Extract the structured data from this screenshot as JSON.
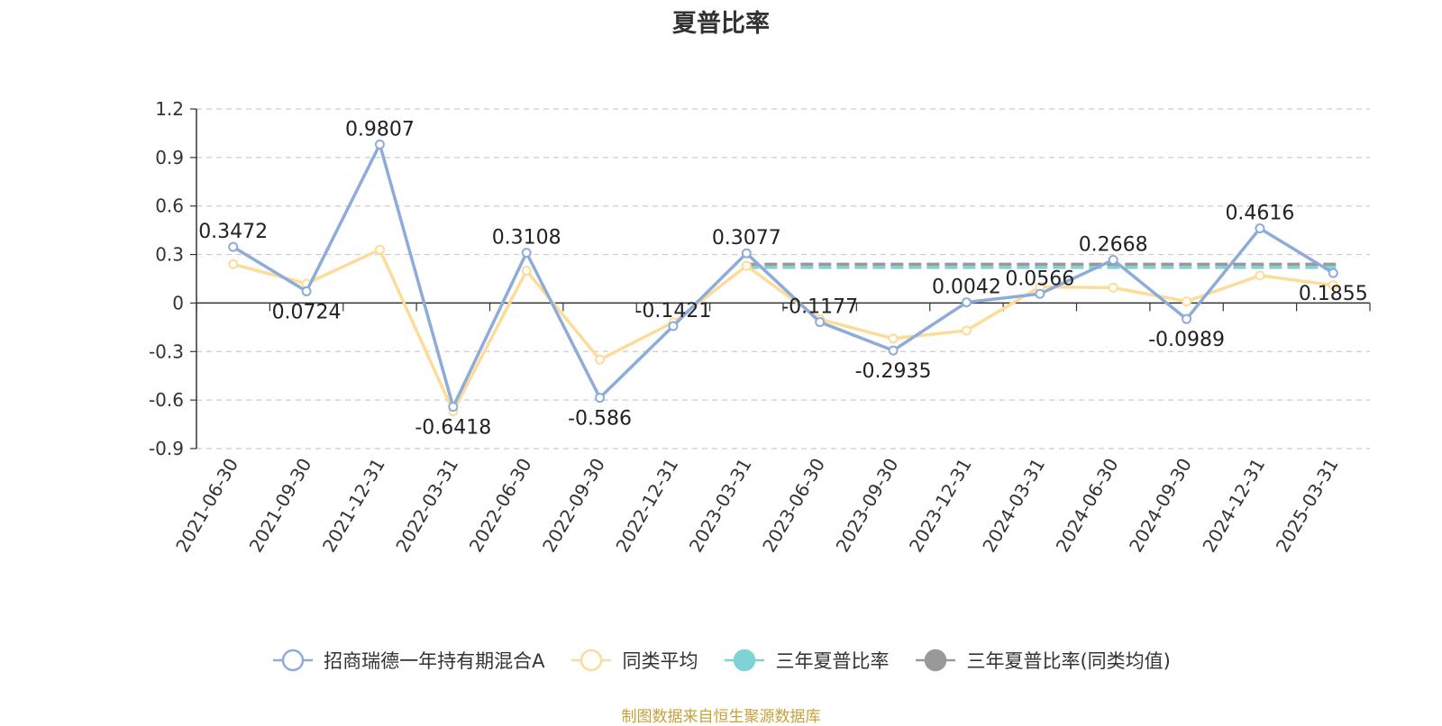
{
  "chart_data": {
    "type": "line",
    "title": "夏普比率",
    "categories": [
      "2021-06-30",
      "2021-09-30",
      "2021-12-31",
      "2022-03-31",
      "2022-06-30",
      "2022-09-30",
      "2022-12-31",
      "2023-03-31",
      "2023-06-30",
      "2023-09-30",
      "2023-12-31",
      "2024-03-31",
      "2024-06-30",
      "2024-09-30",
      "2024-12-31",
      "2025-03-31"
    ],
    "ylim": [
      -0.9,
      1.2
    ],
    "yticks": [
      "1.2",
      "0.9",
      "0.6",
      "0.3",
      "0",
      "-0.3",
      "-0.6",
      "-0.9"
    ],
    "grid": true,
    "legend_position": "bottom",
    "series": [
      {
        "name": "招商瑞德一年持有期混合A",
        "color": "#8eacd9",
        "values": [
          0.3472,
          0.0724,
          0.9807,
          -0.6418,
          0.3108,
          -0.586,
          -0.1421,
          0.3077,
          -0.1177,
          -0.2935,
          0.0042,
          0.0566,
          0.2668,
          -0.0989,
          0.4616,
          0.1855
        ],
        "labels": [
          "0.3472",
          "0.0724",
          "0.9807",
          "-0.6418",
          "0.3108",
          "-0.586",
          "-0.1421",
          "0.3077",
          "-0.1177",
          "-0.2935",
          "0.0042",
          "0.0566",
          "0.2668",
          "-0.0989",
          "0.4616",
          "0.1855"
        ]
      },
      {
        "name": "同类平均",
        "color": "#fddc9a",
        "values": [
          0.24,
          0.12,
          0.33,
          -0.67,
          0.2,
          -0.35,
          -0.12,
          0.23,
          -0.1,
          -0.22,
          -0.17,
          0.1,
          0.095,
          0.01,
          0.17,
          0.11
        ]
      },
      {
        "name": "三年夏普比率",
        "color": "#7fd3d5",
        "from": "2023-03-31",
        "to": "2025-03-31",
        "value": 0.22
      },
      {
        "name": "三年夏普比率(同类均值)",
        "color": "#999999",
        "from": "2023-03-31",
        "to": "2025-03-31",
        "value": 0.24
      }
    ]
  },
  "source": "制图数据来自恒生聚源数据库"
}
